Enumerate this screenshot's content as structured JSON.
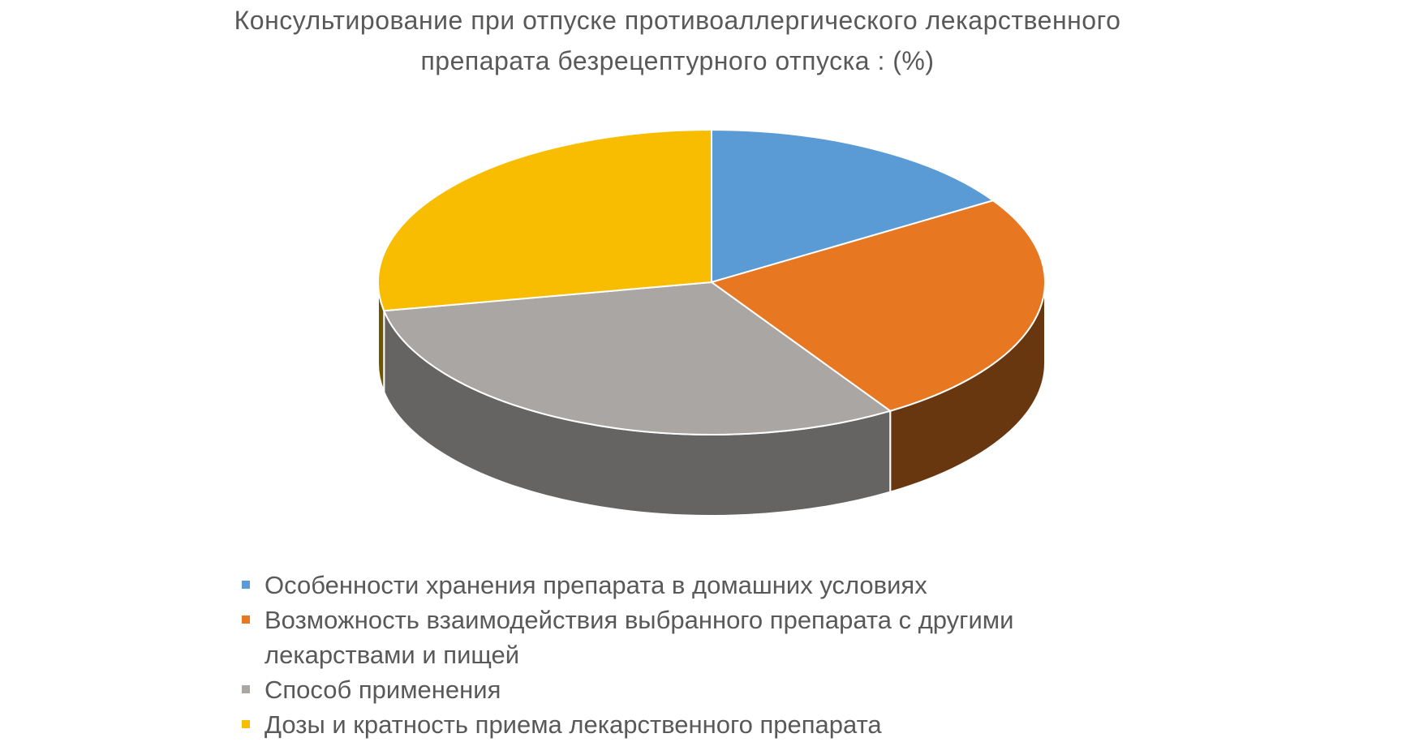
{
  "chart_data": {
    "type": "pie",
    "title": "Консультирование при отпуске противоаллергического лекарственного препарата безрецептурного отпуска : (%)",
    "categories": [
      "Особенности хранения препарата в домашних условиях",
      "Возможность взаимодействия выбранного препарата с другими лекарствами и пищей",
      "Способ применения",
      "Дозы и кратность приема лекарственного препарата"
    ],
    "values": [
      16,
      25,
      31,
      28
    ],
    "colors": [
      "#5b9bd5",
      "#e87722",
      "#aaa6a3",
      "#f8bd00"
    ],
    "legend": "bottom"
  }
}
